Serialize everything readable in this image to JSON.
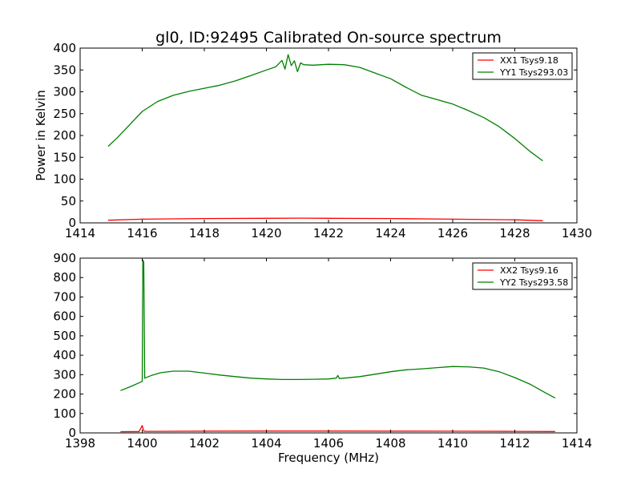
{
  "figure": {
    "title": "gl0, ID:92495 Calibrated On-source spectrum",
    "xlabel": "Frequency (MHz)",
    "ylabel": "Power in Kelvin"
  },
  "colors": {
    "xx": "#ff0000",
    "yy": "#008000"
  },
  "chart_data": [
    {
      "type": "line",
      "title": "gl0, ID:92495 Calibrated On-source spectrum",
      "xlabel": "",
      "ylabel": "Power in Kelvin",
      "xlim": [
        1414,
        1430
      ],
      "ylim": [
        0,
        400
      ],
      "xticks": [
        "1414",
        "1416",
        "1418",
        "1420",
        "1422",
        "1424",
        "1426",
        "1428",
        "1430"
      ],
      "yticks": [
        "0",
        "50",
        "100",
        "150",
        "200",
        "250",
        "300",
        "350",
        "400"
      ],
      "grid": false,
      "legend": "top-right",
      "series": [
        {
          "name": "XX1 Tsys9.18",
          "color": "#ff0000",
          "x": [
            1414.9,
            1416,
            1418,
            1420,
            1421,
            1422,
            1424,
            1426,
            1428,
            1428.9
          ],
          "y": [
            6,
            8.5,
            10,
            10.5,
            10.8,
            10.5,
            10,
            8.5,
            7,
            5
          ]
        },
        {
          "name": "YY1 Tsys293.03",
          "color": "#008000",
          "x": [
            1414.9,
            1415.2,
            1415.6,
            1416.0,
            1416.5,
            1417.0,
            1417.5,
            1418.0,
            1418.5,
            1419.0,
            1419.5,
            1420.0,
            1420.3,
            1420.5,
            1420.6,
            1420.7,
            1420.8,
            1420.9,
            1421.0,
            1421.1,
            1421.2,
            1421.5,
            1422.0,
            1422.5,
            1423.0,
            1423.5,
            1424.0,
            1424.5,
            1425.0,
            1425.5,
            1426.0,
            1426.5,
            1427.0,
            1427.5,
            1428.0,
            1428.5,
            1428.9
          ],
          "y": [
            175,
            195,
            225,
            255,
            278,
            292,
            301,
            308,
            315,
            325,
            337,
            350,
            357,
            372,
            352,
            385,
            360,
            371,
            346,
            366,
            362,
            361,
            363,
            362,
            356,
            343,
            330,
            310,
            292,
            282,
            272,
            257,
            241,
            220,
            193,
            163,
            142
          ]
        }
      ]
    },
    {
      "type": "line",
      "title": "",
      "xlabel": "Frequency (MHz)",
      "ylabel": "",
      "xlim": [
        1398,
        1414
      ],
      "ylim": [
        0,
        900
      ],
      "xticks": [
        "1398",
        "1400",
        "1402",
        "1404",
        "1406",
        "1408",
        "1410",
        "1412",
        "1414"
      ],
      "yticks": [
        "0",
        "100",
        "200",
        "300",
        "400",
        "500",
        "600",
        "700",
        "800",
        "900"
      ],
      "grid": false,
      "legend": "top-right",
      "series": [
        {
          "name": "XX2 Tsys9.16",
          "color": "#ff0000",
          "x": [
            1399.3,
            1399.9,
            1400.0,
            1400.05,
            1400.15,
            1402,
            1404,
            1406,
            1408,
            1410,
            1412,
            1413.3
          ],
          "y": [
            6,
            7,
            38,
            9,
            8,
            9,
            9.5,
            9.5,
            9,
            8.5,
            8,
            7
          ]
        },
        {
          "name": "YY2 Tsys293.58",
          "color": "#008000",
          "x": [
            1399.3,
            1399.6,
            1400.0,
            1400.02,
            1400.05,
            1400.08,
            1400.3,
            1400.6,
            1401.0,
            1401.5,
            1402.0,
            1402.5,
            1403.0,
            1403.5,
            1404.0,
            1404.5,
            1405.0,
            1405.5,
            1406.0,
            1406.25,
            1406.3,
            1406.35,
            1406.5,
            1407.0,
            1407.5,
            1408.0,
            1408.5,
            1409.0,
            1409.5,
            1410.0,
            1410.5,
            1411.0,
            1411.5,
            1412.0,
            1412.5,
            1413.0,
            1413.3
          ],
          "y": [
            218,
            237,
            265,
            890,
            880,
            282,
            296,
            310,
            318,
            318,
            308,
            298,
            290,
            282,
            278,
            275,
            275,
            276,
            278,
            282,
            296,
            280,
            282,
            290,
            302,
            315,
            325,
            330,
            336,
            342,
            340,
            334,
            315,
            285,
            250,
            205,
            180
          ]
        }
      ]
    }
  ]
}
